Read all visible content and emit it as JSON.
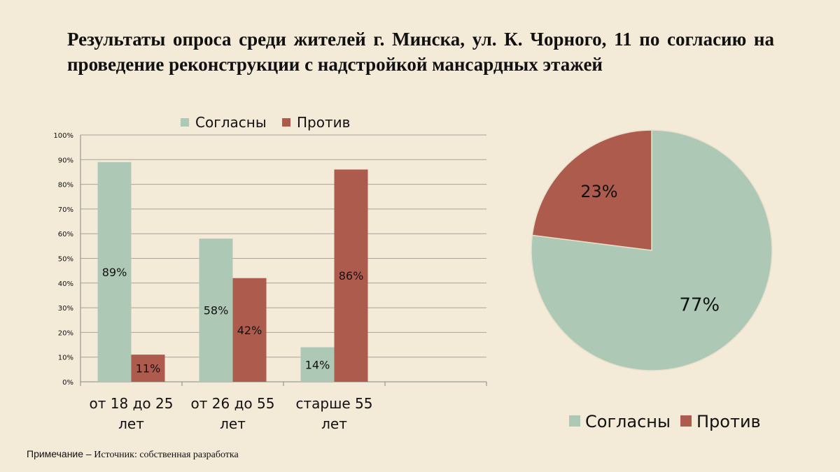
{
  "title": "Результаты опроса среди жителей г. Минска, ул. К. Чорного, 11 по согласию на проведение реконструкции с надстройкой мансардных этажей",
  "note": {
    "label": "Примечание –",
    "text": " Источник: собственная разработка"
  },
  "colors": {
    "agree": "#adc9b6",
    "against": "#ad5b4c",
    "background": "#f3ead8"
  },
  "chart_data": [
    {
      "type": "bar",
      "categories": [
        [
          "от 18 до 25",
          "лет"
        ],
        [
          "от 26 до 55",
          "лет"
        ],
        [
          "старше 55",
          "лет"
        ]
      ],
      "series": [
        {
          "name": "Согласны",
          "values": [
            89,
            58,
            14
          ],
          "labels": [
            "89%",
            "58%",
            "14%"
          ]
        },
        {
          "name": "Против",
          "values": [
            11,
            42,
            86
          ],
          "labels": [
            "11%",
            "42%",
            "86%"
          ]
        }
      ],
      "yticks": [
        "0%",
        "10%",
        "20%",
        "30%",
        "40%",
        "50%",
        "60%",
        "70%",
        "80%",
        "90%",
        "100%"
      ],
      "ylim": [
        0,
        100
      ],
      "grid": true,
      "legend": "top"
    },
    {
      "type": "pie",
      "slices": [
        {
          "name": "Согласны",
          "value": 77,
          "label": "77%"
        },
        {
          "name": "Против",
          "value": 23,
          "label": "23%"
        }
      ],
      "legend": "bottom"
    }
  ]
}
